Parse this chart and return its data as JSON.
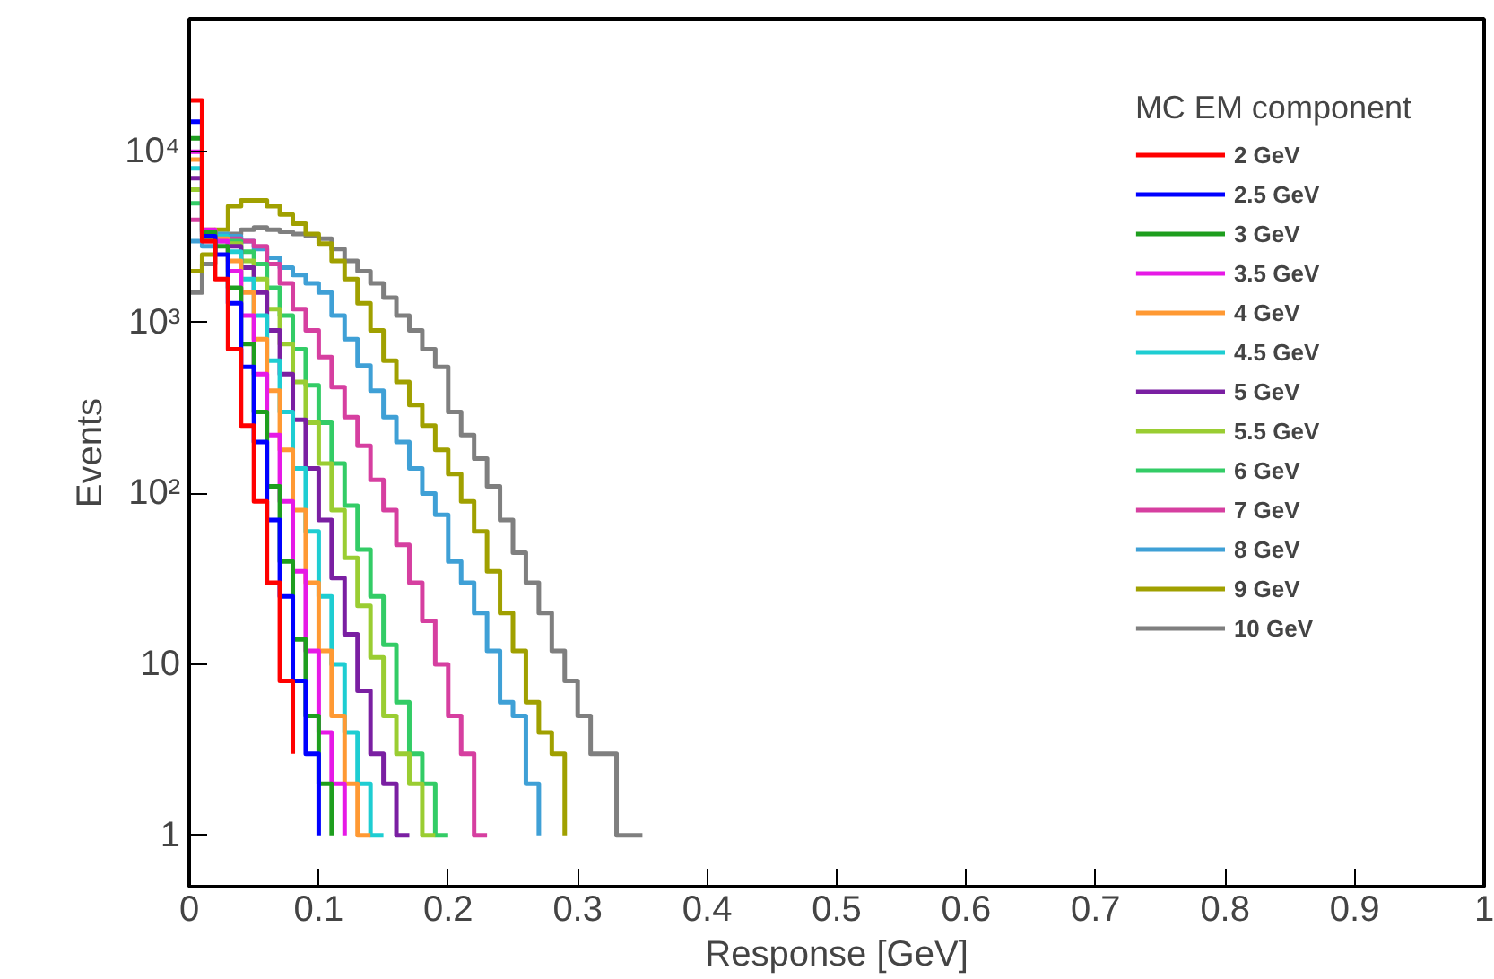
{
  "chart_data": {
    "type": "step",
    "xlabel": "Response [GeV]",
    "ylabel": "Events",
    "legend_title": "MC EM component",
    "legend": "top right",
    "grid": false,
    "log": "y",
    "xlim": [
      0,
      1
    ],
    "xticks": [
      0,
      0.1,
      0.2,
      0.3,
      0.4,
      0.5,
      0.6,
      0.7,
      0.8,
      0.9,
      1
    ],
    "ylim": [
      0.5,
      60000
    ],
    "yticks": [
      1,
      10,
      {
        "value": 100,
        "label": "10²"
      },
      {
        "value": 1000,
        "label": "10³"
      },
      {
        "value": 10000,
        "label": "10⁴"
      }
    ],
    "series": [
      {
        "name": "2 GeV",
        "color": "#ff0000",
        "x": [
          0,
          0.01,
          0.02,
          0.03,
          0.04,
          0.05,
          0.06,
          0.07,
          0.08
        ],
        "values": [
          20000,
          3000,
          1800,
          700,
          250,
          90,
          30,
          8,
          3
        ]
      },
      {
        "name": "2.5 GeV",
        "color": "#0000ff",
        "x": [
          0,
          0.01,
          0.02,
          0.03,
          0.04,
          0.05,
          0.06,
          0.07,
          0.08,
          0.09,
          0.1
        ],
        "values": [
          15000,
          3200,
          2500,
          1300,
          550,
          200,
          70,
          25,
          8,
          3,
          1
        ]
      },
      {
        "name": "3 GeV",
        "color": "#1e9e1e",
        "x": [
          0,
          0.01,
          0.02,
          0.03,
          0.04,
          0.05,
          0.06,
          0.07,
          0.08,
          0.09,
          0.1,
          0.11
        ],
        "values": [
          12000,
          3400,
          2800,
          1600,
          750,
          300,
          110,
          40,
          14,
          5,
          2,
          1
        ]
      },
      {
        "name": "3.5 GeV",
        "color": "#e619e6",
        "x": [
          0,
          0.01,
          0.02,
          0.03,
          0.04,
          0.05,
          0.06,
          0.07,
          0.08,
          0.09,
          0.1,
          0.11,
          0.12
        ],
        "values": [
          10000,
          3500,
          3000,
          2000,
          1100,
          500,
          220,
          90,
          35,
          12,
          4,
          2,
          1
        ]
      },
      {
        "name": "4 GeV",
        "color": "#ff9933",
        "x": [
          0,
          0.01,
          0.02,
          0.03,
          0.04,
          0.05,
          0.06,
          0.07,
          0.08,
          0.09,
          0.1,
          0.11,
          0.12,
          0.13,
          0.14
        ],
        "values": [
          9000,
          3500,
          3100,
          2300,
          1500,
          800,
          400,
          180,
          80,
          30,
          12,
          5,
          2,
          1,
          1
        ]
      },
      {
        "name": "4.5 GeV",
        "color": "#1ecdd2",
        "x": [
          0,
          0.01,
          0.02,
          0.03,
          0.04,
          0.05,
          0.06,
          0.07,
          0.08,
          0.09,
          0.1,
          0.11,
          0.12,
          0.13,
          0.14,
          0.15
        ],
        "values": [
          8000,
          3400,
          3200,
          2600,
          1800,
          1100,
          600,
          300,
          140,
          60,
          25,
          10,
          4,
          2,
          1,
          1
        ]
      },
      {
        "name": "5 GeV",
        "color": "#7a1fa2",
        "x": [
          0,
          0.01,
          0.02,
          0.03,
          0.04,
          0.05,
          0.06,
          0.07,
          0.08,
          0.09,
          0.1,
          0.11,
          0.12,
          0.13,
          0.14,
          0.15,
          0.16,
          0.17
        ],
        "values": [
          7000,
          3300,
          3200,
          2800,
          2100,
          1500,
          900,
          500,
          270,
          140,
          70,
          32,
          15,
          7,
          3,
          2,
          1,
          1
        ]
      },
      {
        "name": "5.5 GeV",
        "color": "#9acd32",
        "x": [
          0,
          0.01,
          0.02,
          0.03,
          0.04,
          0.05,
          0.06,
          0.07,
          0.08,
          0.09,
          0.1,
          0.11,
          0.12,
          0.13,
          0.14,
          0.15,
          0.16,
          0.17,
          0.18,
          0.19
        ],
        "values": [
          6000,
          3200,
          3200,
          2900,
          2300,
          1800,
          1200,
          750,
          450,
          260,
          150,
          80,
          42,
          22,
          11,
          5,
          3,
          2,
          1,
          1
        ]
      },
      {
        "name": "6 GeV",
        "color": "#33cc66",
        "x": [
          0,
          0.01,
          0.02,
          0.03,
          0.04,
          0.05,
          0.06,
          0.07,
          0.08,
          0.09,
          0.1,
          0.11,
          0.12,
          0.13,
          0.14,
          0.15,
          0.16,
          0.17,
          0.18,
          0.19,
          0.2
        ],
        "values": [
          5000,
          3100,
          3200,
          3000,
          2600,
          2200,
          1600,
          1100,
          700,
          430,
          260,
          150,
          85,
          47,
          25,
          13,
          6,
          3,
          2,
          1,
          1
        ]
      },
      {
        "name": "7 GeV",
        "color": "#d63fa0",
        "x": [
          0,
          0.01,
          0.02,
          0.03,
          0.04,
          0.05,
          0.06,
          0.07,
          0.08,
          0.09,
          0.1,
          0.11,
          0.12,
          0.13,
          0.14,
          0.15,
          0.16,
          0.17,
          0.18,
          0.19,
          0.2,
          0.21,
          0.22,
          0.23
        ],
        "values": [
          4000,
          3000,
          3200,
          3100,
          3000,
          2800,
          2200,
          1700,
          1200,
          900,
          630,
          420,
          280,
          190,
          120,
          80,
          50,
          30,
          18,
          10,
          5,
          3,
          1,
          1
        ]
      },
      {
        "name": "8 GeV",
        "color": "#3fa0d6",
        "x": [
          0,
          0.01,
          0.02,
          0.03,
          0.04,
          0.05,
          0.06,
          0.07,
          0.08,
          0.09,
          0.1,
          0.11,
          0.12,
          0.13,
          0.14,
          0.15,
          0.16,
          0.17,
          0.18,
          0.19,
          0.2,
          0.21,
          0.22,
          0.23,
          0.24,
          0.25,
          0.26,
          0.27
        ],
        "values": [
          3000,
          2800,
          3300,
          3200,
          3000,
          2700,
          2400,
          2100,
          1900,
          1700,
          1500,
          1100,
          800,
          560,
          400,
          280,
          200,
          140,
          100,
          75,
          40,
          30,
          20,
          12,
          6,
          5,
          2,
          1
        ]
      },
      {
        "name": "9 GeV",
        "color": "#a0a000",
        "x": [
          0,
          0.01,
          0.02,
          0.03,
          0.04,
          0.05,
          0.06,
          0.07,
          0.08,
          0.09,
          0.1,
          0.11,
          0.12,
          0.13,
          0.14,
          0.15,
          0.16,
          0.17,
          0.18,
          0.19,
          0.2,
          0.21,
          0.22,
          0.23,
          0.24,
          0.25,
          0.26,
          0.27,
          0.28,
          0.29
        ],
        "values": [
          2000,
          2500,
          3500,
          4800,
          5200,
          5200,
          4800,
          4300,
          3800,
          3300,
          2900,
          2300,
          1800,
          1300,
          900,
          600,
          450,
          330,
          250,
          180,
          130,
          90,
          60,
          35,
          20,
          12,
          6,
          4,
          3,
          1
        ]
      },
      {
        "name": "10 GeV",
        "color": "#7f7f7f",
        "x": [
          0,
          0.01,
          0.02,
          0.03,
          0.04,
          0.05,
          0.06,
          0.07,
          0.08,
          0.09,
          0.1,
          0.11,
          0.12,
          0.13,
          0.14,
          0.15,
          0.16,
          0.17,
          0.18,
          0.19,
          0.2,
          0.21,
          0.22,
          0.23,
          0.24,
          0.25,
          0.26,
          0.27,
          0.28,
          0.29,
          0.3,
          0.31,
          0.32,
          0.33,
          0.34,
          0.35
        ],
        "values": [
          1500,
          2200,
          3000,
          3300,
          3500,
          3600,
          3500,
          3400,
          3300,
          3200,
          3100,
          2700,
          2300,
          2000,
          1700,
          1400,
          1100,
          900,
          700,
          550,
          300,
          220,
          160,
          110,
          70,
          45,
          30,
          20,
          12,
          8,
          5,
          3,
          3,
          1,
          1,
          1
        ]
      }
    ]
  }
}
